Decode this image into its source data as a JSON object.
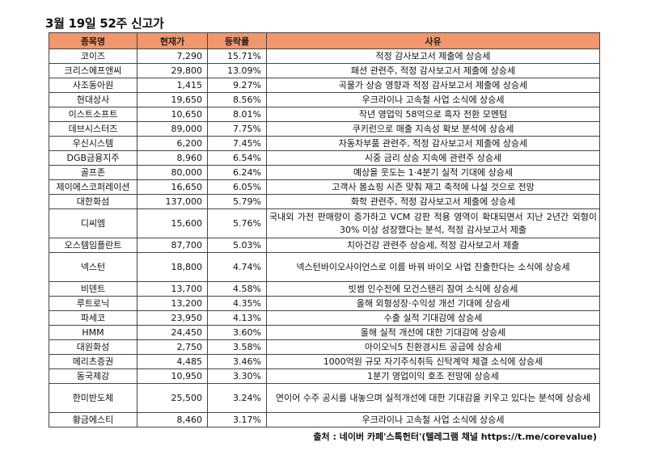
{
  "title": "3월 19일 52주 신고가",
  "headers": {
    "name": "종목명",
    "price": "현재가",
    "change": "등락률",
    "reason": "사유"
  },
  "rows": [
    {
      "name": "코이즈",
      "price": "7,290",
      "change": "15.71%",
      "reason": "적정 감사보고서 제출에 상승세",
      "tall": false
    },
    {
      "name": "크리스에프앤씨",
      "price": "29,800",
      "change": "13.09%",
      "reason": "패션 관련주, 적정 감사보고서 제출에 상승세",
      "tall": false
    },
    {
      "name": "사조동아원",
      "price": "1,415",
      "change": "9.27%",
      "reason": "곡물가 상승 영향과 적정 감사보고서 제출에 상승세",
      "tall": false
    },
    {
      "name": "현대상사",
      "price": "19,650",
      "change": "8.56%",
      "reason": "우크라이나 고속철 사업 소식에 상승세",
      "tall": false
    },
    {
      "name": "이스트소프트",
      "price": "10,650",
      "change": "8.01%",
      "reason": "작년 영업익 58억으로 흑자 전환 모멘텀",
      "tall": false
    },
    {
      "name": "데브시스터즈",
      "price": "89,000",
      "change": "7.75%",
      "reason": "쿠키런으로 매출 지속성 확보 분석에 상승세",
      "tall": false
    },
    {
      "name": "우신시스템",
      "price": "6,200",
      "change": "7.45%",
      "reason": "자동차부품 관련주, 적정 감사보고서 제출에 상승세",
      "tall": false
    },
    {
      "name": "DGB금융지주",
      "price": "8,960",
      "change": "6.54%",
      "reason": "시중 금리 상승 지속에 관련주 상승세",
      "tall": false
    },
    {
      "name": "골프존",
      "price": "80,000",
      "change": "6.24%",
      "reason": "예상을 웃도는 1·4분기 실적 기대에 상승세",
      "tall": false
    },
    {
      "name": "제이에스코퍼레이션",
      "price": "16,650",
      "change": "6.05%",
      "reason": "고객사 봄쇼핑 시즌 맞춰 재고 축적에 나설 것으로 전망",
      "tall": false
    },
    {
      "name": "대한화섬",
      "price": "137,000",
      "change": "5.79%",
      "reason": "화학 관련주, 적정 감사보고서 제출에 상승세",
      "tall": false
    },
    {
      "name": "디씨엠",
      "price": "15,600",
      "change": "5.76%",
      "reason": "국내외 가전 판매량이 증가하고 VCM 강판 적용 영역이 확대되면서 지난 2년간 외형이 30% 이상 성장했다는 분석, 적정 감사보고서 제출",
      "tall": true
    },
    {
      "name": "오스템임플란트",
      "price": "87,700",
      "change": "5.03%",
      "reason": "치아건강 관련주 상승세, 적정 감사보고서 제출",
      "tall": false
    },
    {
      "name": "넥스턴",
      "price": "18,800",
      "change": "4.74%",
      "reason": "넥스턴바이오사이언스로 이름 바꿔 바이오 사업 진출한다는 소식에 상승세",
      "tall": true
    },
    {
      "name": "비덴트",
      "price": "13,700",
      "change": "4.58%",
      "reason": "빗썸 인수전에 모건스탠리 참여 소식에 상승세",
      "tall": false
    },
    {
      "name": "루트로닉",
      "price": "13,200",
      "change": "4.35%",
      "reason": "올해 외형성장·수익성 개선 기대에 상승세",
      "tall": false
    },
    {
      "name": "파세코",
      "price": "23,950",
      "change": "4.13%",
      "reason": "수출 실적 기대감에 상승세",
      "tall": false
    },
    {
      "name": "HMM",
      "price": "24,450",
      "change": "3.60%",
      "reason": "올해 실적 개선에 대한 기대감에 상승세",
      "tall": false
    },
    {
      "name": "대원화성",
      "price": "2,750",
      "change": "3.58%",
      "reason": "아이오닉5 친환경시트 공급에 상승세",
      "tall": false
    },
    {
      "name": "메리츠증권",
      "price": "4,485",
      "change": "3.46%",
      "reason": "1000억원 규모 자기주식취득 신탁계약 체결 소식에 상승세",
      "tall": false
    },
    {
      "name": "동국제강",
      "price": "10,950",
      "change": "3.30%",
      "reason": "1분기 영업이익 호조 전망에 상승세",
      "tall": false
    },
    {
      "name": "한미반도체",
      "price": "25,500",
      "change": "3.24%",
      "reason": "연이어 수주 공시를 내놓으며 실적개선에 대한 기대감을 키우고 있다는 분석에 상승세",
      "tall": true
    },
    {
      "name": "황금에스티",
      "price": "8,460",
      "change": "3.17%",
      "reason": "우크라이나 고속철 사업 소식에 상승세",
      "tall": false
    }
  ],
  "source": "출처 : 네이버 카페'스톡헌터'(텔레그램 채널 https://t.me/corevalue)"
}
